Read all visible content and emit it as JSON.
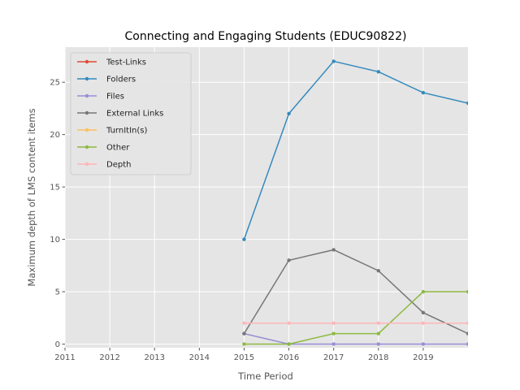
{
  "chart_data": {
    "type": "line",
    "title": "Connecting and Engaging Students (EDUC90822)",
    "xlabel": "Time Period",
    "ylabel": "Maximum depth of LMS content items",
    "xlim": [
      2011,
      2020
    ],
    "ylim": [
      -0.35,
      28.35
    ],
    "xticks": [
      2011,
      2012,
      2013,
      2014,
      2015,
      2016,
      2017,
      2018,
      2019
    ],
    "yticks": [
      0,
      5,
      10,
      15,
      20,
      25
    ],
    "grid": true,
    "legend_position": "top-left",
    "x": [
      2015,
      2016,
      2017,
      2018,
      2019,
      2020
    ],
    "series": [
      {
        "name": "Test-Links",
        "color": "#E24A33",
        "values": [
          null,
          null,
          null,
          null,
          null,
          null
        ]
      },
      {
        "name": "Folders",
        "color": "#348ABD",
        "values": [
          10,
          22,
          27,
          26,
          24,
          23
        ]
      },
      {
        "name": "Files",
        "color": "#988ED5",
        "values": [
          1,
          0,
          0,
          0,
          0,
          0
        ]
      },
      {
        "name": "External Links",
        "color": "#777777",
        "values": [
          1,
          8,
          9,
          7,
          3,
          1
        ]
      },
      {
        "name": "TurnItIn(s)",
        "color": "#FBC15E",
        "values": [
          null,
          null,
          null,
          null,
          null,
          null
        ]
      },
      {
        "name": "Other",
        "color": "#8EBA42",
        "values": [
          0,
          0,
          1,
          1,
          5,
          5
        ]
      },
      {
        "name": "Depth",
        "color": "#FFB5B8",
        "values": [
          2,
          2,
          2,
          2,
          2,
          2
        ]
      }
    ]
  }
}
